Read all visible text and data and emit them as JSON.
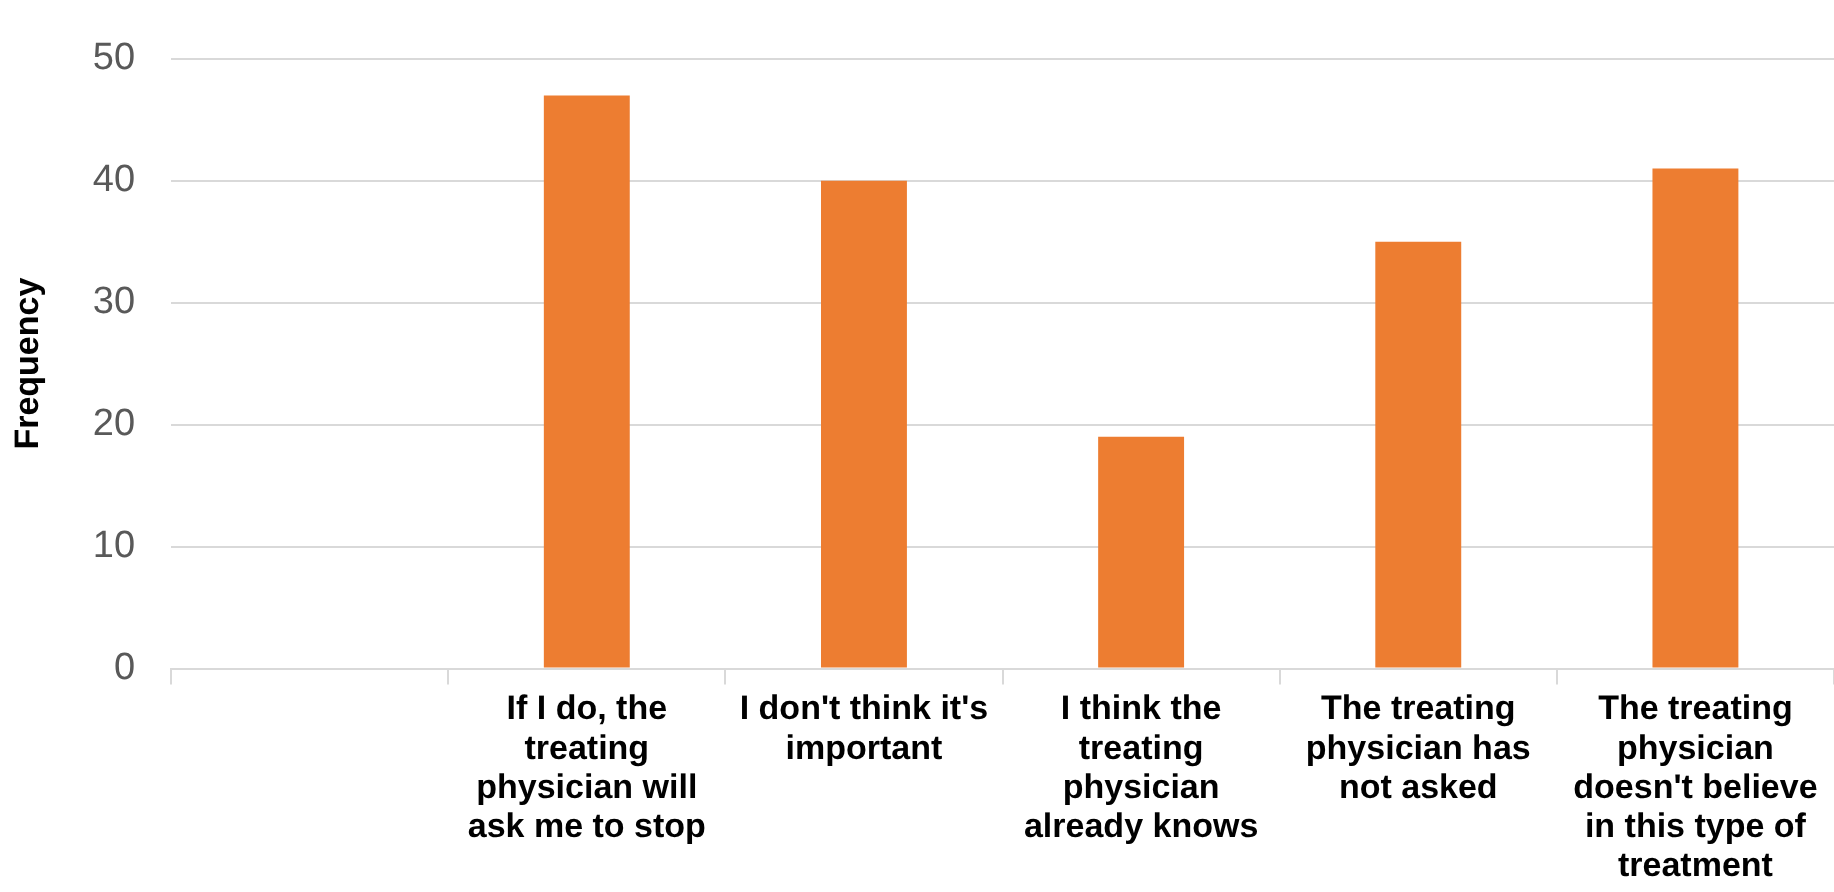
{
  "chart_data": {
    "type": "bar",
    "ylabel": "Frequency",
    "categories": [
      null,
      "If I do, the treating physician will ask me to stop",
      "I don't think it's important",
      "I think the treating physician already knows",
      "The treating physician has not asked",
      "The treating physician doesn't believe in this type of treatment"
    ],
    "values": [
      null,
      47,
      40,
      19,
      35,
      41
    ],
    "color": "#ed7d31",
    "ylim": [
      0,
      50
    ],
    "yticks": [
      0,
      10,
      20,
      30,
      40,
      50
    ],
    "grid": "y",
    "legend": false
  }
}
